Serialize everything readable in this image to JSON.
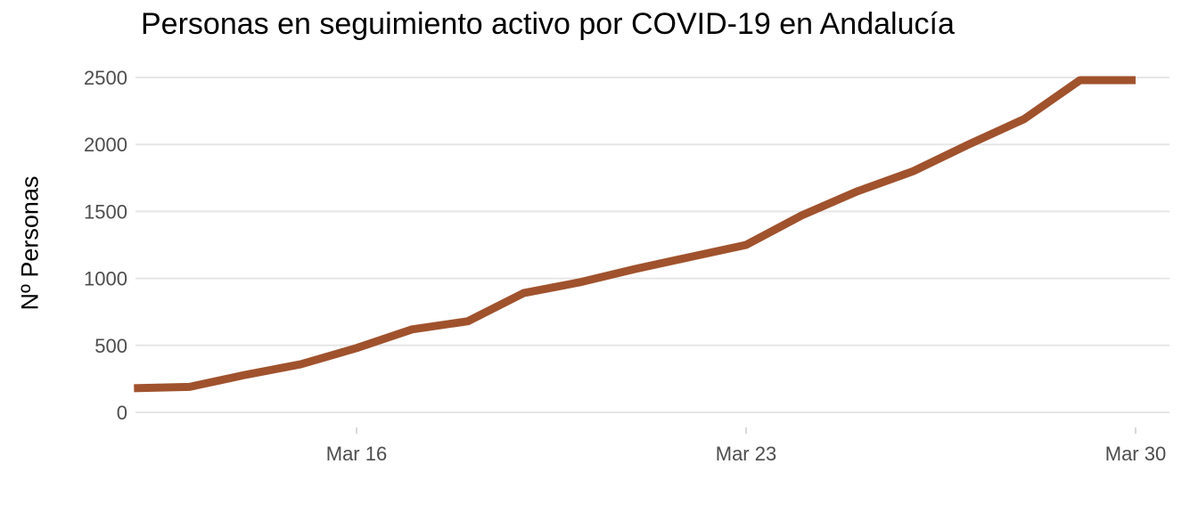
{
  "chart_data": {
    "type": "line",
    "title": "Personas en seguimiento activo por COVID-19 en Andalucía",
    "xlabel": "",
    "ylabel": "Nº Personas",
    "ylim": [
      0,
      2500
    ],
    "xlim": [
      "2020-03-12",
      "2020-03-30"
    ],
    "y_ticks": [
      0,
      500,
      1000,
      1500,
      2000,
      2500
    ],
    "y_tick_labels": [
      "0",
      "500",
      "1000",
      "1500",
      "2000",
      "2500"
    ],
    "x_ticks": [
      "2020-03-16",
      "2020-03-23",
      "2020-03-30"
    ],
    "x_tick_labels": [
      "Mar 16",
      "Mar 23",
      "Mar 30"
    ],
    "grid": true,
    "legend": "none",
    "series": [
      {
        "color": "#A0522D",
        "x": [
          "2020-03-12",
          "2020-03-13",
          "2020-03-14",
          "2020-03-15",
          "2020-03-16",
          "2020-03-17",
          "2020-03-18",
          "2020-03-19",
          "2020-03-20",
          "2020-03-21",
          "2020-03-22",
          "2020-03-23",
          "2020-03-24",
          "2020-03-25",
          "2020-03-26",
          "2020-03-27",
          "2020-03-28",
          "2020-03-29",
          "2020-03-30"
        ],
        "y": [
          180,
          190,
          280,
          360,
          480,
          620,
          680,
          890,
          970,
          1070,
          1160,
          1250,
          1470,
          1650,
          1800,
          2000,
          2190,
          2480,
          2480
        ]
      }
    ]
  }
}
